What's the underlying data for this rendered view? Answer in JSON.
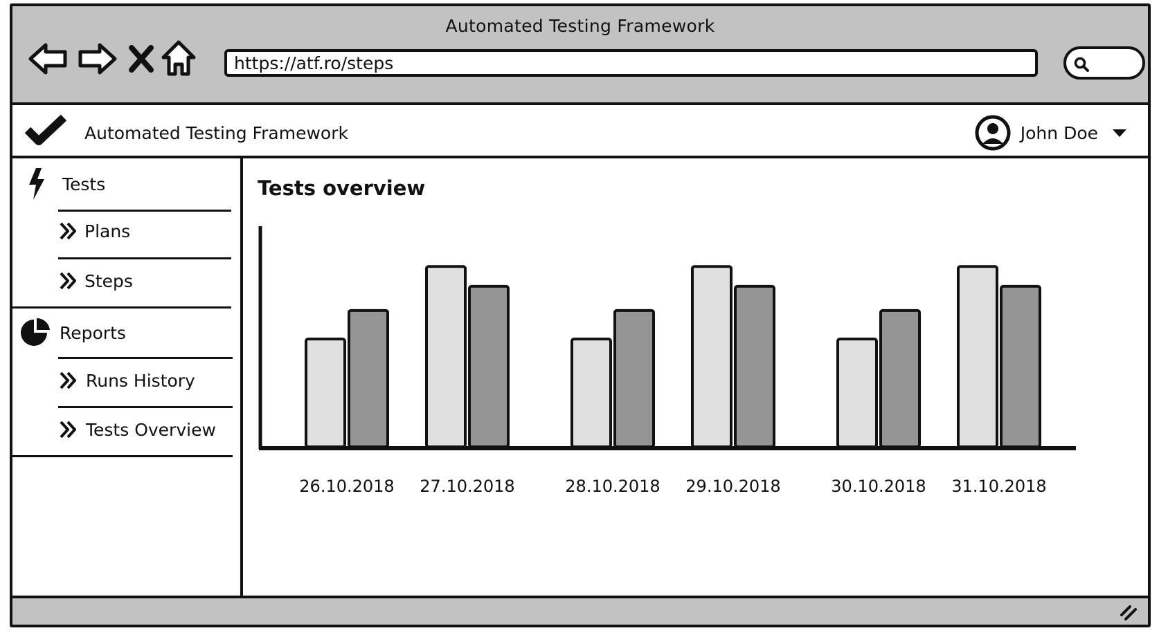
{
  "window": {
    "title": "Automated Testing Framework"
  },
  "browser": {
    "url": "https://atf.ro/steps",
    "icons": [
      "back-arrow-icon",
      "forward-arrow-icon",
      "close-icon",
      "home-icon",
      "search-icon"
    ]
  },
  "header": {
    "app_name": "Automated Testing Framework",
    "logo_icon": "checkmark-icon",
    "user": {
      "name": "John Doe",
      "avatar_icon": "user-icon",
      "menu_icon": "caret-down-icon"
    }
  },
  "sidebar": {
    "sections": [
      {
        "label": "Tests",
        "icon": "lightning-icon",
        "items": [
          {
            "label": "Plans"
          },
          {
            "label": "Steps"
          }
        ]
      },
      {
        "label": "Reports",
        "icon": "pie-chart-icon",
        "items": [
          {
            "label": "Runs History"
          },
          {
            "label": "Tests Overview"
          }
        ]
      }
    ]
  },
  "main": {
    "title": "Tests overview"
  },
  "colors": {
    "chrome": "#c2c2c2",
    "series_a": "#e0e0e0",
    "series_b": "#959595",
    "ink": "#111111"
  },
  "chart_data": {
    "type": "bar",
    "title": "",
    "xlabel": "",
    "ylabel": "",
    "categories": [
      "26.10.2018",
      "27.10.2018",
      "28.10.2018",
      "29.10.2018",
      "30.10.2018",
      "31.10.2018"
    ],
    "series": [
      {
        "values": [
          49,
          82,
          49,
          82,
          49,
          82
        ]
      },
      {
        "values": [
          62,
          73,
          62,
          73,
          62,
          73
        ]
      }
    ],
    "ylim": [
      0,
      100
    ],
    "grid": false,
    "legend": "none"
  }
}
